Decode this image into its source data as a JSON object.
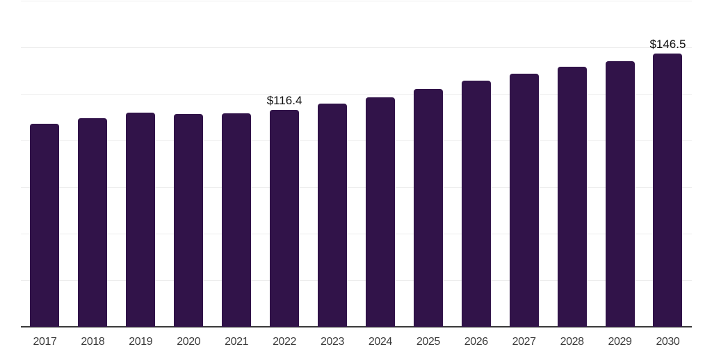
{
  "chart_data": {
    "type": "bar",
    "title": "",
    "categories": [
      "2017",
      "2018",
      "2019",
      "2020",
      "2021",
      "2022",
      "2023",
      "2024",
      "2025",
      "2026",
      "2027",
      "2028",
      "2029",
      "2030"
    ],
    "values": [
      109.0,
      112.1,
      114.8,
      114.3,
      114.5,
      116.4,
      119.6,
      123.0,
      127.6,
      132.0,
      135.9,
      139.6,
      142.6,
      146.5
    ],
    "point_labels": [
      "",
      "",
      "",
      "",
      "",
      "$116.4",
      "",
      "",
      "",
      "",
      "",
      "",
      "",
      "$146.5"
    ],
    "xlabel": "",
    "ylabel": "",
    "ylim": [
      0,
      175
    ],
    "grid": {
      "show": true,
      "step": 25,
      "orientation": "horizontal"
    },
    "legend_position": "none",
    "colors": {
      "bar": "#311349",
      "axis_line": "#3a3a3a",
      "gridline": "#ededed",
      "tick_label": "#3b3b3b",
      "data_label": "#0f0f0f",
      "background": "#ffffff"
    }
  }
}
